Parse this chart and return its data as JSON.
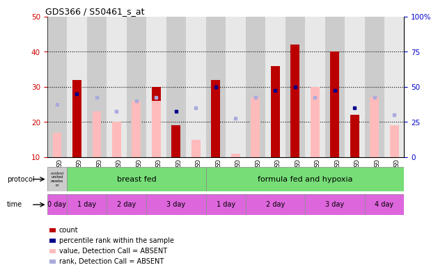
{
  "title": "GDS366 / S50461_s_at",
  "samples": [
    "GSM7609",
    "GSM7602",
    "GSM7603",
    "GSM7604",
    "GSM7605",
    "GSM7606",
    "GSM7607",
    "GSM7608",
    "GSM7610",
    "GSM7611",
    "GSM7612",
    "GSM7613",
    "GSM7614",
    "GSM7615",
    "GSM7616",
    "GSM7617",
    "GSM7618",
    "GSM7619"
  ],
  "red_bars": [
    0,
    32,
    0,
    0,
    0,
    30,
    19,
    0,
    32,
    0,
    0,
    36,
    42,
    0,
    40,
    22,
    0,
    0
  ],
  "pink_bars": [
    17,
    0,
    23,
    20,
    26,
    26,
    0,
    15,
    0,
    11,
    27,
    0,
    0,
    30,
    0,
    0,
    27,
    19
  ],
  "blue_squares": [
    0,
    28,
    0,
    0,
    0,
    0,
    23,
    0,
    30,
    0,
    0,
    29,
    30,
    0,
    29,
    24,
    0,
    0
  ],
  "light_blue_squares": [
    25,
    0,
    27,
    23,
    26,
    27,
    0,
    24,
    0,
    21,
    27,
    0,
    0,
    27,
    0,
    0,
    27,
    22
  ],
  "ylim_left": [
    10,
    50
  ],
  "ylim_right": [
    0,
    100
  ],
  "yticks_left": [
    10,
    20,
    30,
    40,
    50
  ],
  "yticks_right": [
    0,
    25,
    50,
    75,
    100
  ],
  "left_color": "#cc0000",
  "right_color": "#0000cc",
  "red_bar_color": "#bb0000",
  "pink_bar_color": "#ffbbbb",
  "blue_sq_color": "#00008b",
  "light_blue_sq_color": "#aaaadd",
  "bg_color": "#cccccc",
  "protocol_green": "#77dd77",
  "time_purple": "#dd66dd",
  "legend_items": [
    "count",
    "percentile rank within the sample",
    "value, Detection Call = ABSENT",
    "rank, Detection Call = ABSENT"
  ],
  "legend_colors": [
    "#bb0000",
    "#00008b",
    "#ffbbbb",
    "#aaaadd"
  ],
  "time_spans": [
    [
      0,
      1,
      "0 day"
    ],
    [
      1,
      3,
      "1 day"
    ],
    [
      3,
      5,
      "2 day"
    ],
    [
      5,
      8,
      "3 day"
    ],
    [
      8,
      10,
      "1 day"
    ],
    [
      10,
      13,
      "2 day"
    ],
    [
      13,
      16,
      "3 day"
    ],
    [
      16,
      18,
      "4 day"
    ]
  ]
}
